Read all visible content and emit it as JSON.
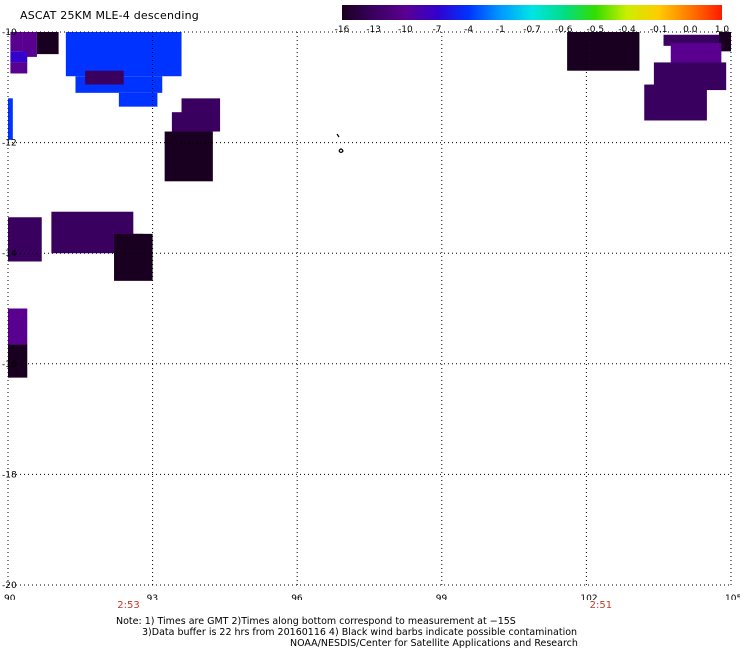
{
  "title": "ASCAT 25KM MLE-4 descending",
  "colorbar": {
    "labels": [
      "-16",
      "-13",
      "-10",
      "-7",
      "-4",
      "-1",
      "-0.7",
      "-0.6",
      "-0.5",
      "-0.4",
      "-0.1",
      "0.0",
      "1.0"
    ],
    "colors": [
      "#1a0020",
      "#3a0060",
      "#5a0090",
      "#3300cc",
      "#0033ff",
      "#0099ff",
      "#00e5e5",
      "#00dd88",
      "#33dd00",
      "#ccee00",
      "#ffcc00",
      "#ff7700",
      "#ff1a00"
    ]
  },
  "map": {
    "lon_ticks": [
      "90",
      "93",
      "96",
      "99",
      "102",
      "105"
    ],
    "lat_ticks": [
      "-10",
      "-12",
      "-14",
      "-16",
      "-18",
      "-20"
    ],
    "lon_range": [
      90,
      105
    ],
    "lat_range": [
      -20,
      -10
    ],
    "times": [
      {
        "label": "2:53",
        "lon": 92.5
      },
      {
        "label": "2:51",
        "lon": 102.3
      }
    ],
    "cells": [
      {
        "lon": [
          90.05,
          90.3
        ],
        "lat": [
          -10.0,
          -10.35
        ],
        "v": -10
      },
      {
        "lon": [
          90.3,
          90.6
        ],
        "lat": [
          -10.0,
          -10.45
        ],
        "v": -10
      },
      {
        "lon": [
          90.6,
          91.05
        ],
        "lat": [
          -10.0,
          -10.4
        ],
        "v": -16
      },
      {
        "lon": [
          90.05,
          90.4
        ],
        "lat": [
          -10.35,
          -10.55
        ],
        "v": -7
      },
      {
        "lon": [
          90.05,
          90.4
        ],
        "lat": [
          -10.55,
          -10.75
        ],
        "v": -10
      },
      {
        "lon": [
          91.2,
          93.6
        ],
        "lat": [
          -10.0,
          -10.8
        ],
        "v": -4
      },
      {
        "lon": [
          91.4,
          93.2
        ],
        "lat": [
          -10.8,
          -11.1
        ],
        "v": -4
      },
      {
        "lon": [
          91.6,
          92.4
        ],
        "lat": [
          -10.7,
          -10.95
        ],
        "v": -13
      },
      {
        "lon": [
          92.3,
          93.1
        ],
        "lat": [
          -11.1,
          -11.35
        ],
        "v": -4
      },
      {
        "lon": [
          90.0,
          90.1
        ],
        "lat": [
          -11.2,
          -11.95
        ],
        "v": -4
      },
      {
        "lon": [
          93.6,
          94.4
        ],
        "lat": [
          -11.2,
          -11.8
        ],
        "v": -13
      },
      {
        "lon": [
          93.4,
          94.2
        ],
        "lat": [
          -11.45,
          -12.0
        ],
        "v": -13
      },
      {
        "lon": [
          93.25,
          94.25
        ],
        "lat": [
          -11.8,
          -12.7
        ],
        "v": -16
      },
      {
        "lon": [
          90.0,
          90.7
        ],
        "lat": [
          -13.35,
          -14.15
        ],
        "v": -13
      },
      {
        "lon": [
          90.9,
          92.6
        ],
        "lat": [
          -13.25,
          -14.0
        ],
        "v": -13
      },
      {
        "lon": [
          92.2,
          92.8
        ],
        "lat": [
          -13.65,
          -14.05
        ],
        "v": -10
      },
      {
        "lon": [
          92.2,
          93.0
        ],
        "lat": [
          -13.65,
          -14.5
        ],
        "v": -16
      },
      {
        "lon": [
          90.0,
          90.4
        ],
        "lat": [
          -15.0,
          -15.65
        ],
        "v": -10
      },
      {
        "lon": [
          90.0,
          90.4
        ],
        "lat": [
          -15.65,
          -16.25
        ],
        "v": -16
      },
      {
        "lon": [
          101.6,
          103.1
        ],
        "lat": [
          -10.0,
          -10.7
        ],
        "v": -16
      },
      {
        "lon": [
          103.6,
          105.0
        ],
        "lat": [
          -10.05,
          -10.25
        ],
        "v": -13
      },
      {
        "lon": [
          104.75,
          105.0
        ],
        "lat": [
          -10.0,
          -10.35
        ],
        "v": -16
      },
      {
        "lon": [
          103.75,
          104.8
        ],
        "lat": [
          -10.2,
          -10.6
        ],
        "v": -10
      },
      {
        "lon": [
          103.4,
          104.9
        ],
        "lat": [
          -10.55,
          -11.05
        ],
        "v": -13
      },
      {
        "lon": [
          103.2,
          104.5
        ],
        "lat": [
          -10.95,
          -11.6
        ],
        "v": -13
      }
    ]
  },
  "notes": {
    "line1": "Note: 1) Times are GMT 2)Times along bottom correspond to measurement at −15S",
    "line2": "3)Data buffer is 22 hrs from 20160116 4) Black wind barbs indicate possible contamination",
    "line3": "NOAA/NESDIS/Center for Satellite Applications and Research"
  }
}
